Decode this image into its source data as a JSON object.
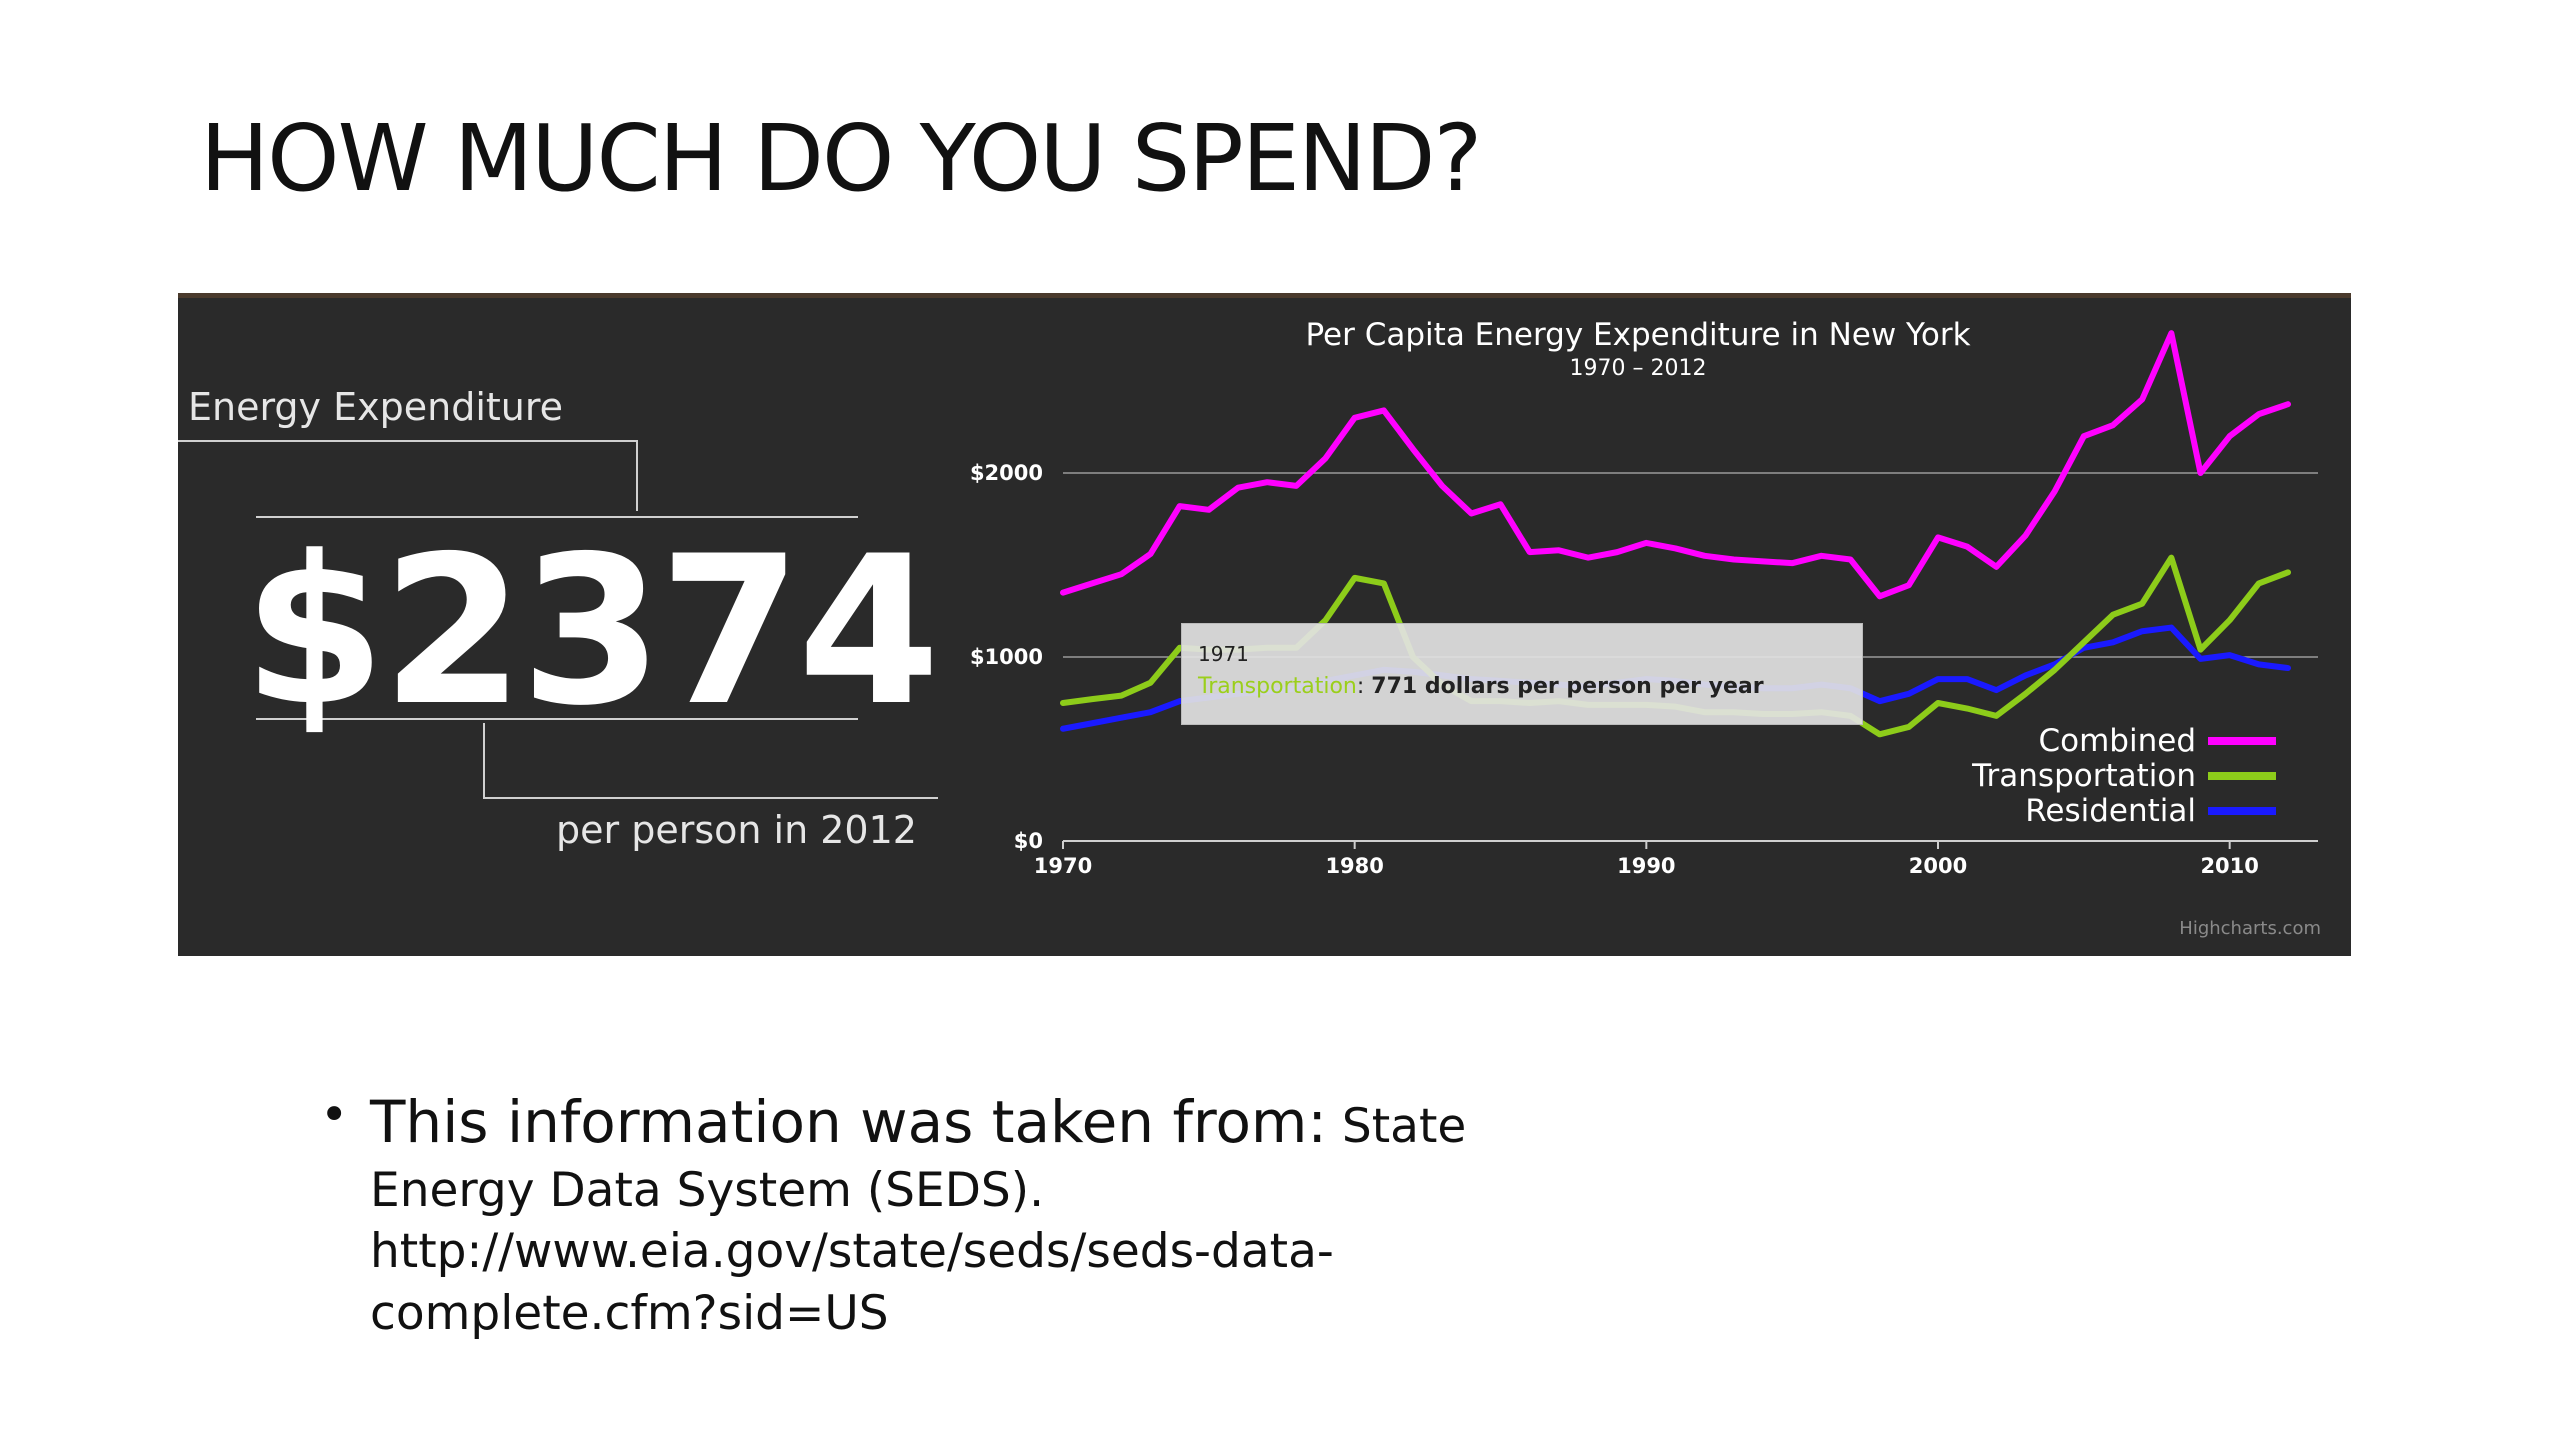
{
  "slide": {
    "title": "HOW MUCH DO YOU SPEND?",
    "bullet_lead": "This information was taken from:",
    "bullet_rest_1": " State",
    "bullet_line_2": "Energy Data System (SEDS).",
    "bullet_line_3": "http://www.eia.gov/state/seds/seds-data-",
    "bullet_line_4": "complete.cfm?sid=US"
  },
  "infographic": {
    "energy_label": "Energy Expenditure",
    "big_number": "$2374",
    "per_person": "per person in 2012",
    "credit": "Highcharts.com"
  },
  "tooltip": {
    "year": "1971",
    "series": "Transportation",
    "value_text": "771 dollars per person per year"
  },
  "colors": {
    "combined": "#ff00ff",
    "transportation": "#8dcc1a",
    "residential": "#1a1aff",
    "panel_bg": "#2a2a2a"
  },
  "chart_data": {
    "type": "line",
    "title": "Per Capita Energy Expenditure in New York",
    "subtitle": "1970 – 2012",
    "xlim": [
      1970,
      2012
    ],
    "ylim": [
      0,
      2000
    ],
    "xticks": [
      1970,
      1980,
      1990,
      2000,
      2010
    ],
    "yticks": [
      0,
      1000,
      2000
    ],
    "ytick_labels": [
      "$0",
      "$1000",
      "$2000"
    ],
    "legend_position": "bottom-right",
    "series": [
      {
        "name": "Combined",
        "color": "#ff00ff",
        "x": [
          1970,
          1971,
          1972,
          1973,
          1974,
          1975,
          1976,
          1977,
          1978,
          1979,
          1980,
          1981,
          1982,
          1983,
          1984,
          1985,
          1986,
          1987,
          1988,
          1989,
          1990,
          1991,
          1992,
          1993,
          1994,
          1995,
          1996,
          1997,
          1998,
          1999,
          2000,
          2001,
          2002,
          2003,
          2004,
          2005,
          2006,
          2007,
          2008,
          2009,
          2010,
          2011,
          2012
        ],
        "y": [
          1350,
          1400,
          1450,
          1560,
          1820,
          1800,
          1920,
          1950,
          1930,
          2080,
          2300,
          2340,
          2130,
          1930,
          1780,
          1830,
          1570,
          1580,
          1540,
          1570,
          1620,
          1590,
          1550,
          1530,
          1520,
          1510,
          1550,
          1530,
          1330,
          1390,
          1650,
          1600,
          1490,
          1660,
          1900,
          2200,
          2260,
          2400,
          2760,
          2000,
          2200,
          2320,
          2374
        ]
      },
      {
        "name": "Transportation",
        "color": "#8dcc1a",
        "x": [
          1970,
          1971,
          1972,
          1973,
          1974,
          1975,
          1976,
          1977,
          1978,
          1979,
          1980,
          1981,
          1982,
          1983,
          1984,
          1985,
          1986,
          1987,
          1988,
          1989,
          1990,
          1991,
          1992,
          1993,
          1994,
          1995,
          1996,
          1997,
          1998,
          1999,
          2000,
          2001,
          2002,
          2003,
          2004,
          2005,
          2006,
          2007,
          2008,
          2009,
          2010,
          2011,
          2012
        ],
        "y": [
          750,
          771,
          790,
          860,
          1050,
          1040,
          1040,
          1050,
          1050,
          1200,
          1430,
          1400,
          1000,
          850,
          760,
          760,
          750,
          760,
          740,
          740,
          740,
          730,
          700,
          700,
          690,
          690,
          700,
          680,
          580,
          620,
          750,
          720,
          680,
          800,
          930,
          1080,
          1230,
          1290,
          1540,
          1040,
          1200,
          1400,
          1460
        ]
      },
      {
        "name": "Residential",
        "color": "#1a1aff",
        "x": [
          1970,
          1971,
          1972,
          1973,
          1974,
          1975,
          1976,
          1977,
          1978,
          1979,
          1980,
          1981,
          1982,
          1983,
          1984,
          1985,
          1986,
          1987,
          1988,
          1989,
          1990,
          1991,
          1992,
          1993,
          1994,
          1995,
          1996,
          1997,
          1998,
          1999,
          2000,
          2001,
          2002,
          2003,
          2004,
          2005,
          2006,
          2007,
          2008,
          2009,
          2010,
          2011,
          2012
        ],
        "y": [
          610,
          640,
          670,
          700,
          760,
          780,
          800,
          810,
          830,
          870,
          900,
          930,
          920,
          900,
          880,
          870,
          860,
          850,
          840,
          860,
          880,
          870,
          850,
          840,
          830,
          830,
          850,
          830,
          760,
          800,
          880,
          880,
          820,
          900,
          960,
          1050,
          1080,
          1140,
          1160,
          990,
          1010,
          960,
          940
        ]
      }
    ]
  }
}
